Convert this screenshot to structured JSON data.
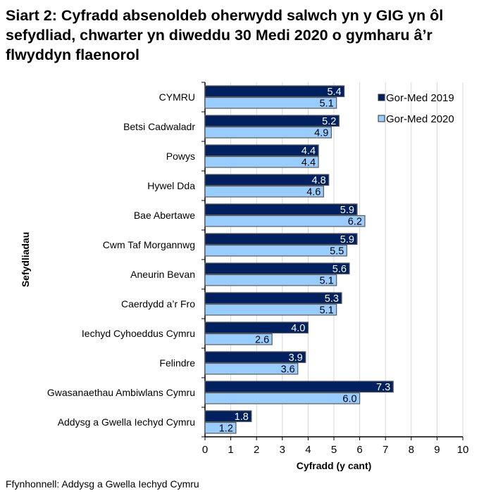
{
  "title": "Siart 2: Cyfradd absenoldeb oherwydd salwch yn y GIG yn ôl sefydliad, chwarter yn diweddu 30 Medi 2020 o gymharu â’r flwyddyn flaenorol",
  "source": "Ffynhonnell: Addysg a Gwella Iechyd Cymru",
  "chart_data": {
    "type": "bar",
    "orientation": "horizontal",
    "categories": [
      "CYMRU",
      "Betsi Cadwaladr",
      "Powys",
      "Hywel Dda",
      "Bae Abertawe",
      "Cwm Taf Morgannwg",
      "Aneurin Bevan",
      "Caerdydd a’r Fro",
      "Iechyd Cyhoeddus Cymru",
      "Felindre",
      "Gwasanaethau Ambiwlans Cymru",
      "Addysg a Gwella Iechyd Cymru"
    ],
    "series": [
      {
        "name": "Gor-Med 2019",
        "color": "#002060",
        "values": [
          5.4,
          5.2,
          4.4,
          4.8,
          5.9,
          5.9,
          5.6,
          5.3,
          4.0,
          3.9,
          7.3,
          1.8
        ]
      },
      {
        "name": "Gor-Med 2020",
        "color": "#99CCFF",
        "values": [
          5.1,
          4.9,
          4.4,
          4.6,
          6.2,
          5.5,
          5.1,
          5.1,
          2.6,
          3.6,
          6.0,
          1.2
        ]
      }
    ],
    "xlabel": "Cyfradd (y cant)",
    "ylabel": "Sefydliadau",
    "xlim": [
      0,
      10
    ],
    "xticks": [
      "0",
      "1",
      "2",
      "3",
      "4",
      "5",
      "6",
      "7",
      "8",
      "9",
      "10"
    ],
    "grid": true,
    "legend": "top-right"
  }
}
